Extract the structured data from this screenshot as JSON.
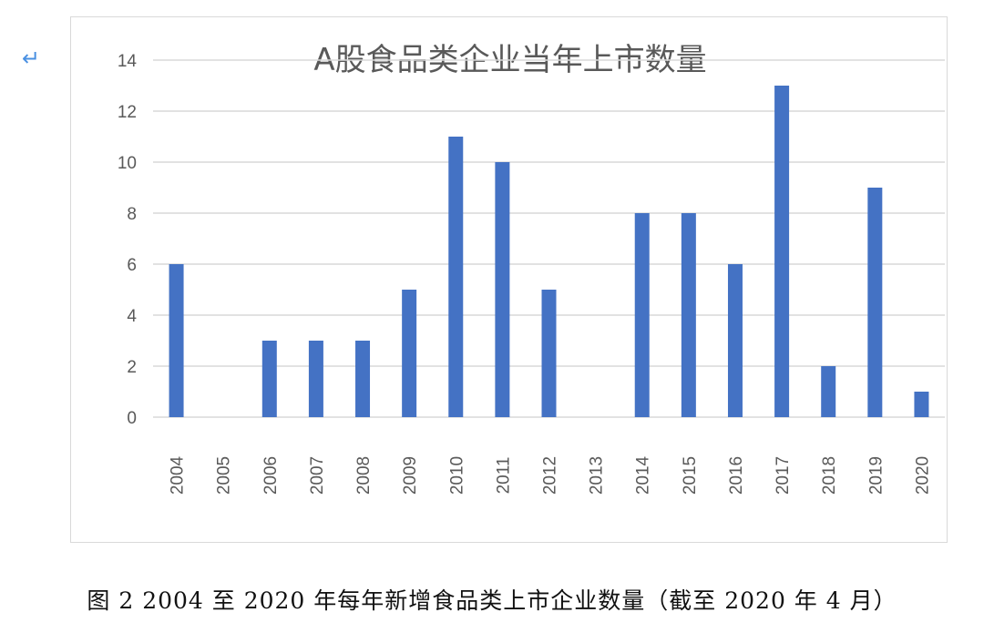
{
  "return_mark": "↵",
  "caption": "图 2   2004 至 2020 年每年新增食品类上市企业数量（截至 2020 年 4 月）",
  "chart_data": {
    "type": "bar",
    "title": "A股食品类企业当年上市数量",
    "categories": [
      "2004",
      "2005",
      "2006",
      "2007",
      "2008",
      "2009",
      "2010",
      "2011",
      "2012",
      "2013",
      "2014",
      "2015",
      "2016",
      "2017",
      "2018",
      "2019",
      "2020"
    ],
    "values": [
      6,
      0,
      3,
      3,
      3,
      5,
      11,
      10,
      5,
      0,
      8,
      8,
      6,
      13,
      2,
      9,
      1
    ],
    "ylim": [
      0,
      14
    ],
    "yticks": [
      0,
      2,
      4,
      6,
      8,
      10,
      12,
      14
    ],
    "xlabel": "",
    "ylabel": "",
    "grid": true,
    "legend": "none",
    "bar_color": "#4472c4",
    "grid_color": "#d9d9d9"
  }
}
